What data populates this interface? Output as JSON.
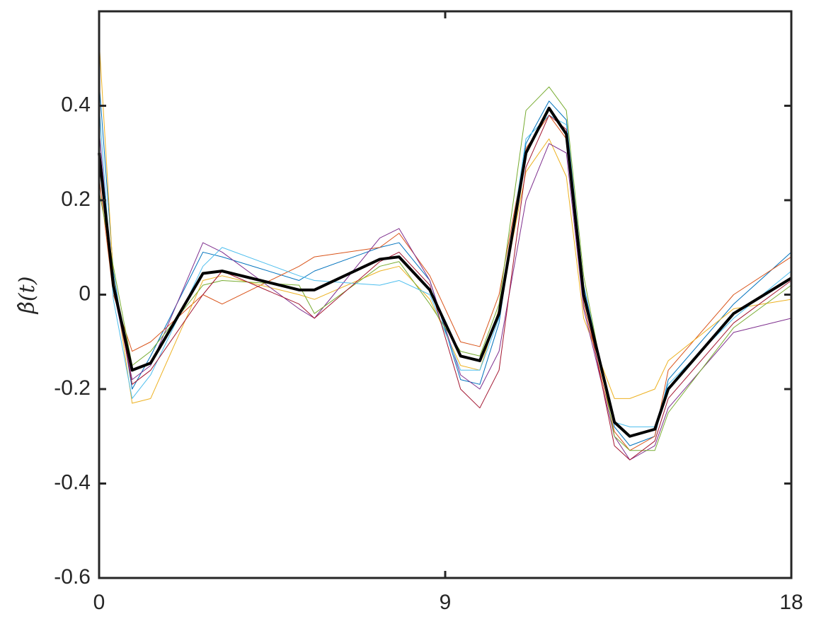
{
  "chart_data": {
    "type": "line",
    "ylabel": "β̂(t)",
    "x": [
      0,
      0.37,
      0.86,
      1.34,
      2.7,
      3.2,
      5.2,
      5.6,
      7.3,
      7.8,
      8.6,
      9.4,
      9.9,
      10.4,
      11.1,
      11.7,
      12.15,
      12.6,
      13.4,
      13.8,
      14.45,
      14.8,
      16.5,
      18
    ],
    "series": [
      {
        "color": "#0072BD",
        "line_width": 1,
        "values": [
          0.45,
          0.05,
          -0.2,
          -0.13,
          0.09,
          0.08,
          0.03,
          0.05,
          0.1,
          0.11,
          0.03,
          -0.18,
          -0.19,
          -0.06,
          0.32,
          0.41,
          0.37,
          0.02,
          -0.28,
          -0.32,
          -0.3,
          -0.18,
          -0.02,
          0.09
        ]
      },
      {
        "color": "#D95319",
        "line_width": 1,
        "values": [
          0.25,
          0.0,
          -0.12,
          -0.1,
          0.0,
          -0.02,
          0.06,
          0.08,
          0.1,
          0.13,
          0.04,
          -0.1,
          -0.11,
          0.0,
          0.31,
          0.38,
          0.33,
          -0.02,
          -0.29,
          -0.33,
          -0.3,
          -0.16,
          0.0,
          0.08
        ]
      },
      {
        "color": "#EDB120",
        "line_width": 1,
        "values": [
          0.54,
          0.04,
          -0.23,
          -0.22,
          0.03,
          0.04,
          0.0,
          -0.01,
          0.05,
          0.06,
          -0.01,
          -0.15,
          -0.16,
          -0.03,
          0.26,
          0.33,
          0.25,
          -0.05,
          -0.22,
          -0.22,
          -0.2,
          -0.14,
          -0.03,
          -0.01
        ]
      },
      {
        "color": "#7E2F8E",
        "line_width": 1,
        "values": [
          0.35,
          0.01,
          -0.18,
          -0.15,
          0.11,
          0.09,
          -0.03,
          -0.05,
          0.12,
          0.14,
          0.03,
          -0.17,
          -0.2,
          -0.12,
          0.2,
          0.32,
          0.3,
          -0.03,
          -0.3,
          -0.35,
          -0.32,
          -0.24,
          -0.08,
          -0.05
        ]
      },
      {
        "color": "#77AC30",
        "line_width": 1,
        "values": [
          0.22,
          0.06,
          -0.15,
          -0.12,
          0.02,
          0.03,
          0.02,
          -0.04,
          0.06,
          0.07,
          -0.02,
          -0.12,
          -0.13,
          -0.02,
          0.39,
          0.44,
          0.39,
          0.04,
          -0.3,
          -0.33,
          -0.33,
          -0.25,
          -0.07,
          0.02
        ]
      },
      {
        "color": "#4DBEEE",
        "line_width": 1,
        "values": [
          0.4,
          -0.01,
          -0.22,
          -0.17,
          0.06,
          0.1,
          0.04,
          0.03,
          0.02,
          0.03,
          0.0,
          -0.16,
          -0.16,
          -0.05,
          0.33,
          0.38,
          0.36,
          0.01,
          -0.27,
          -0.28,
          -0.28,
          -0.19,
          -0.05,
          0.05
        ]
      },
      {
        "color": "#A2142F",
        "line_width": 1,
        "values": [
          0.28,
          0.03,
          -0.19,
          -0.16,
          0.0,
          0.05,
          -0.02,
          -0.05,
          0.07,
          0.09,
          0.02,
          -0.2,
          -0.24,
          -0.16,
          0.27,
          0.38,
          0.35,
          0.0,
          -0.32,
          -0.35,
          -0.31,
          -0.22,
          -0.06,
          0.03
        ]
      },
      {
        "color": "#000000",
        "line_width": 4,
        "values": [
          0.3,
          0.02,
          -0.16,
          -0.145,
          0.045,
          0.05,
          0.01,
          0.01,
          0.075,
          0.08,
          0.01,
          -0.13,
          -0.14,
          -0.04,
          0.3,
          0.395,
          0.34,
          0.0,
          -0.27,
          -0.3,
          -0.285,
          -0.2,
          -0.04,
          0.035
        ]
      }
    ],
    "xlim": [
      0,
      18
    ],
    "xticks": [
      0,
      9,
      18
    ],
    "ylim": [
      -0.6,
      0.6
    ],
    "yticks": [
      -0.6,
      -0.4,
      -0.2,
      0,
      0.2,
      0.4
    ],
    "grid": false
  }
}
